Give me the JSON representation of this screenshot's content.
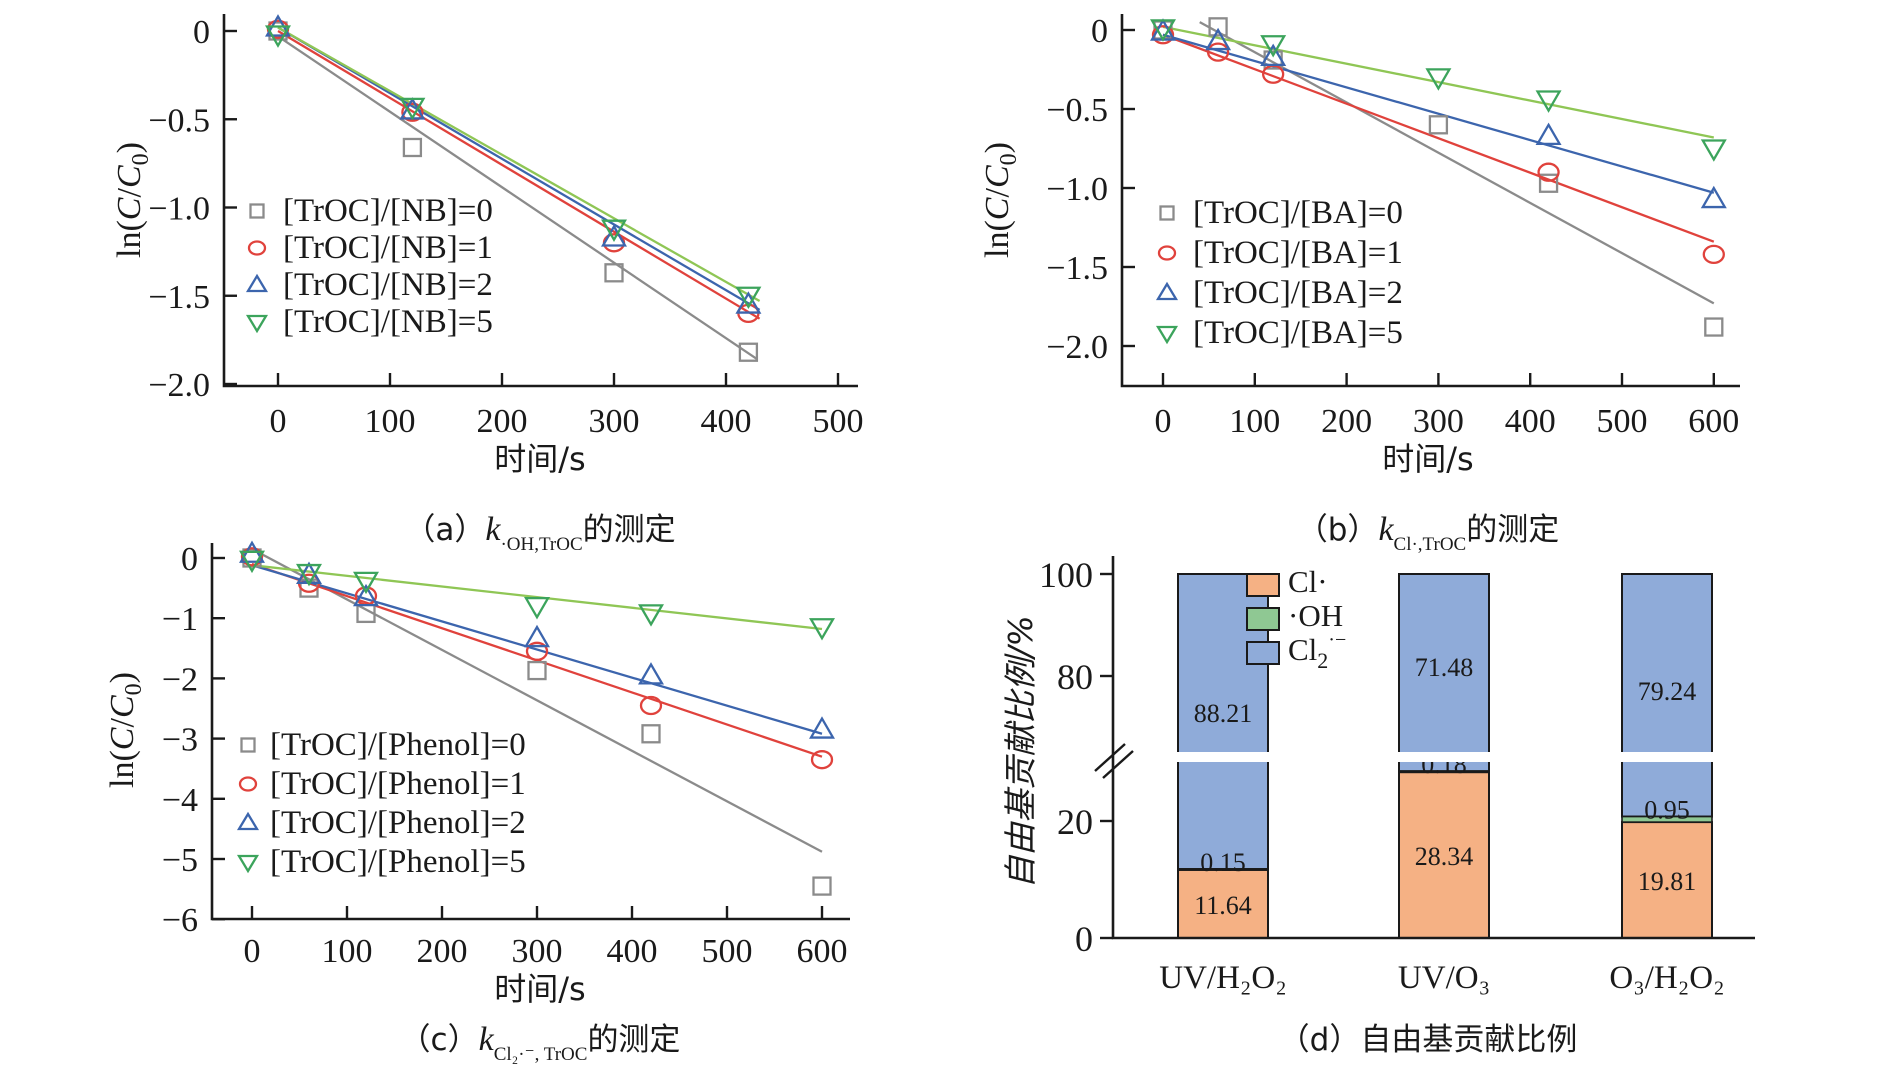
{
  "colors": {
    "axis": "#1a1a1a",
    "gray": "#8b8b8b",
    "red": "#e0423c",
    "blue": "#3c65ad",
    "green": "#3ca45c",
    "green_line": "#8fc655",
    "bar_orange": "#f5b184",
    "bar_green": "#8fc893",
    "bar_blue": "#8fabd9",
    "white": "#ffffff"
  },
  "chart_data": [
    {
      "id": "a",
      "type": "scatter",
      "title": "(a) k·OH,TrOC 的测定",
      "caption": {
        "index": "（a）",
        "k": "k",
        "sub": "·OH,TrOC",
        "tail": "的测定"
      },
      "xlabel": "时间/s",
      "ylabel": "ln(C/C0)",
      "xlim": [
        0,
        500
      ],
      "ylim": [
        -2.0,
        0
      ],
      "xticks": [
        0,
        100,
        200,
        300,
        400,
        500
      ],
      "yticks": [
        0,
        -0.5,
        -1.0,
        -1.5,
        -2.0
      ],
      "ytick_labels": [
        "0",
        "−0.5",
        "−1.0",
        "−1.5",
        "−2.0"
      ],
      "legend_position": "inside-left",
      "grid": false,
      "series": [
        {
          "name": "[TrOC]/[NB]=0",
          "marker": "square",
          "color_key": "gray",
          "x": [
            0,
            120,
            300,
            420
          ],
          "y": [
            0.0,
            -0.66,
            -1.37,
            -1.82
          ],
          "fit": [
            [
              0,
              -0.03
            ],
            [
              428,
              -1.86
            ]
          ]
        },
        {
          "name": "[TrOC]/[NB]=1",
          "marker": "circle",
          "color_key": "red",
          "x": [
            0,
            120,
            300,
            420
          ],
          "y": [
            0.01,
            -0.46,
            -1.2,
            -1.6
          ],
          "fit": [
            [
              0,
              0.0
            ],
            [
              430,
              -1.63
            ]
          ]
        },
        {
          "name": "[TrOC]/[NB]=2",
          "marker": "triangle-up",
          "color_key": "blue",
          "x": [
            0,
            120,
            300,
            420
          ],
          "y": [
            0.02,
            -0.45,
            -1.17,
            -1.55
          ],
          "fit": [
            [
              0,
              0.02
            ],
            [
              430,
              -1.58
            ]
          ]
        },
        {
          "name": "[TrOC]/[NB]=5",
          "marker": "triangle-down",
          "color_key": "green",
          "line_color_key": "green_line",
          "x": [
            0,
            120,
            300,
            420
          ],
          "y": [
            -0.02,
            -0.43,
            -1.12,
            -1.5
          ],
          "fit": [
            [
              0,
              0.02
            ],
            [
              430,
              -1.53
            ]
          ]
        }
      ]
    },
    {
      "id": "b",
      "type": "scatter",
      "title": "(b) kCl·,TrOC 的测定",
      "caption": {
        "index": "（b）",
        "k": "k",
        "sub": "Cl·,TrOC",
        "tail": "的测定"
      },
      "xlabel": "时间/s",
      "ylabel": "ln(C/C0)",
      "xlim": [
        0,
        600
      ],
      "ylim": [
        -2.0,
        0
      ],
      "xticks": [
        0,
        100,
        200,
        300,
        400,
        500,
        600
      ],
      "yticks": [
        0,
        -0.5,
        -1.0,
        -1.5,
        -2.0
      ],
      "ytick_labels": [
        "0",
        "−0.5",
        "−1.0",
        "−1.5",
        "−2.0"
      ],
      "legend_position": "inside-left",
      "grid": false,
      "series": [
        {
          "name": "[TrOC]/[BA]=0",
          "marker": "square",
          "color_key": "gray",
          "x": [
            0,
            60,
            120,
            300,
            420,
            600
          ],
          "y": [
            0.0,
            0.02,
            -0.19,
            -0.6,
            -0.97,
            -1.88
          ],
          "fit": [
            [
              40,
              0.05
            ],
            [
              600,
              -1.73
            ]
          ]
        },
        {
          "name": "[TrOC]/[BA]=1",
          "marker": "circle",
          "color_key": "red",
          "x": [
            0,
            60,
            120,
            420,
            600
          ],
          "y": [
            -0.03,
            -0.14,
            -0.28,
            -0.9,
            -1.42
          ],
          "fit": [
            [
              0,
              -0.03
            ],
            [
              600,
              -1.34
            ]
          ]
        },
        {
          "name": "[TrOC]/[BA]=2",
          "marker": "triangle-up",
          "color_key": "blue",
          "x": [
            0,
            60,
            120,
            420,
            600
          ],
          "y": [
            -0.01,
            -0.07,
            -0.17,
            -0.67,
            -1.07
          ],
          "fit": [
            [
              0,
              -0.03
            ],
            [
              600,
              -1.03
            ]
          ]
        },
        {
          "name": "[TrOC]/[BA]=5",
          "marker": "triangle-down",
          "color_key": "green",
          "line_color_key": "green_line",
          "x": [
            0,
            120,
            300,
            420,
            600
          ],
          "y": [
            0.01,
            -0.09,
            -0.3,
            -0.44,
            -0.75
          ],
          "fit": [
            [
              0,
              0.02
            ],
            [
              600,
              -0.68
            ]
          ]
        }
      ]
    },
    {
      "id": "c",
      "type": "scatter",
      "title": "(c) kCl2·−,TrOC 的测定",
      "caption": {
        "index": "（c）",
        "k": "k",
        "sub": "Cl₂·⁻, TrOC",
        "tail": "的测定"
      },
      "xlabel": "时间/s",
      "ylabel": "ln(C/C0)",
      "xlim": [
        0,
        600
      ],
      "ylim": [
        -6,
        0
      ],
      "xticks": [
        0,
        100,
        200,
        300,
        400,
        500,
        600
      ],
      "yticks": [
        0,
        -1,
        -2,
        -3,
        -4,
        -5,
        -6
      ],
      "ytick_labels": [
        "0",
        "−1",
        "−2",
        "−3",
        "−4",
        "−5",
        "−6"
      ],
      "legend_position": "inside-left",
      "grid": false,
      "series": [
        {
          "name": "[TrOC]/[Phenol]=0",
          "marker": "square",
          "color_key": "gray",
          "x": [
            0,
            60,
            120,
            300,
            420,
            600
          ],
          "y": [
            0.0,
            -0.5,
            -0.92,
            -1.87,
            -2.92,
            -5.45
          ],
          "fit": [
            [
              0,
              0.15
            ],
            [
              600,
              -4.88
            ]
          ]
        },
        {
          "name": "[TrOC]/[Phenol]=1",
          "marker": "circle",
          "color_key": "red",
          "x": [
            0,
            60,
            120,
            300,
            420,
            600
          ],
          "y": [
            0.02,
            -0.42,
            -0.63,
            -1.55,
            -2.45,
            -3.35
          ],
          "fit": [
            [
              0,
              -0.1
            ],
            [
              600,
              -3.3
            ]
          ]
        },
        {
          "name": "[TrOC]/[Phenol]=2",
          "marker": "triangle-up",
          "color_key": "blue",
          "x": [
            0,
            60,
            120,
            300,
            420,
            600
          ],
          "y": [
            0.07,
            -0.28,
            -0.65,
            -1.33,
            -1.95,
            -2.85
          ],
          "fit": [
            [
              0,
              -0.12
            ],
            [
              600,
              -2.92
            ]
          ]
        },
        {
          "name": "[TrOC]/[Phenol]=5",
          "marker": "triangle-down",
          "color_key": "green",
          "line_color_key": "green_line",
          "x": [
            0,
            60,
            120,
            300,
            420,
            600
          ],
          "y": [
            -0.03,
            -0.25,
            -0.38,
            -0.8,
            -0.92,
            -1.15
          ],
          "fit": [
            [
              0,
              -0.12
            ],
            [
              600,
              -1.18
            ]
          ]
        }
      ]
    },
    {
      "id": "d",
      "type": "stacked-bar",
      "title": "(d) 自由基贡献比例",
      "caption": {
        "index": "（d）",
        "tail": "自由基贡献比例"
      },
      "xlabel": "",
      "ylabel": "自由基贡献比例/%",
      "categories": [
        "UV/H₂O₂",
        "UV/O₃",
        "O₃/H₂O₂"
      ],
      "yticks": [
        0,
        20,
        80,
        100
      ],
      "broken_axis": {
        "lower_range": [
          0,
          30
        ],
        "upper_range": [
          64,
          100
        ]
      },
      "grid": false,
      "legend_position": "inside-top",
      "series": [
        {
          "name": "Cl·",
          "color_key": "bar_orange",
          "values": [
            11.64,
            28.34,
            19.81
          ]
        },
        {
          "name": "·OH",
          "color_key": "bar_green",
          "values": [
            0.15,
            0.18,
            0.95
          ]
        },
        {
          "name": "Cl2·−",
          "rich": {
            "base": "Cl",
            "sub": "2",
            "sup": "·−"
          },
          "color_key": "bar_blue",
          "values": [
            88.21,
            71.48,
            79.24
          ]
        }
      ]
    }
  ]
}
